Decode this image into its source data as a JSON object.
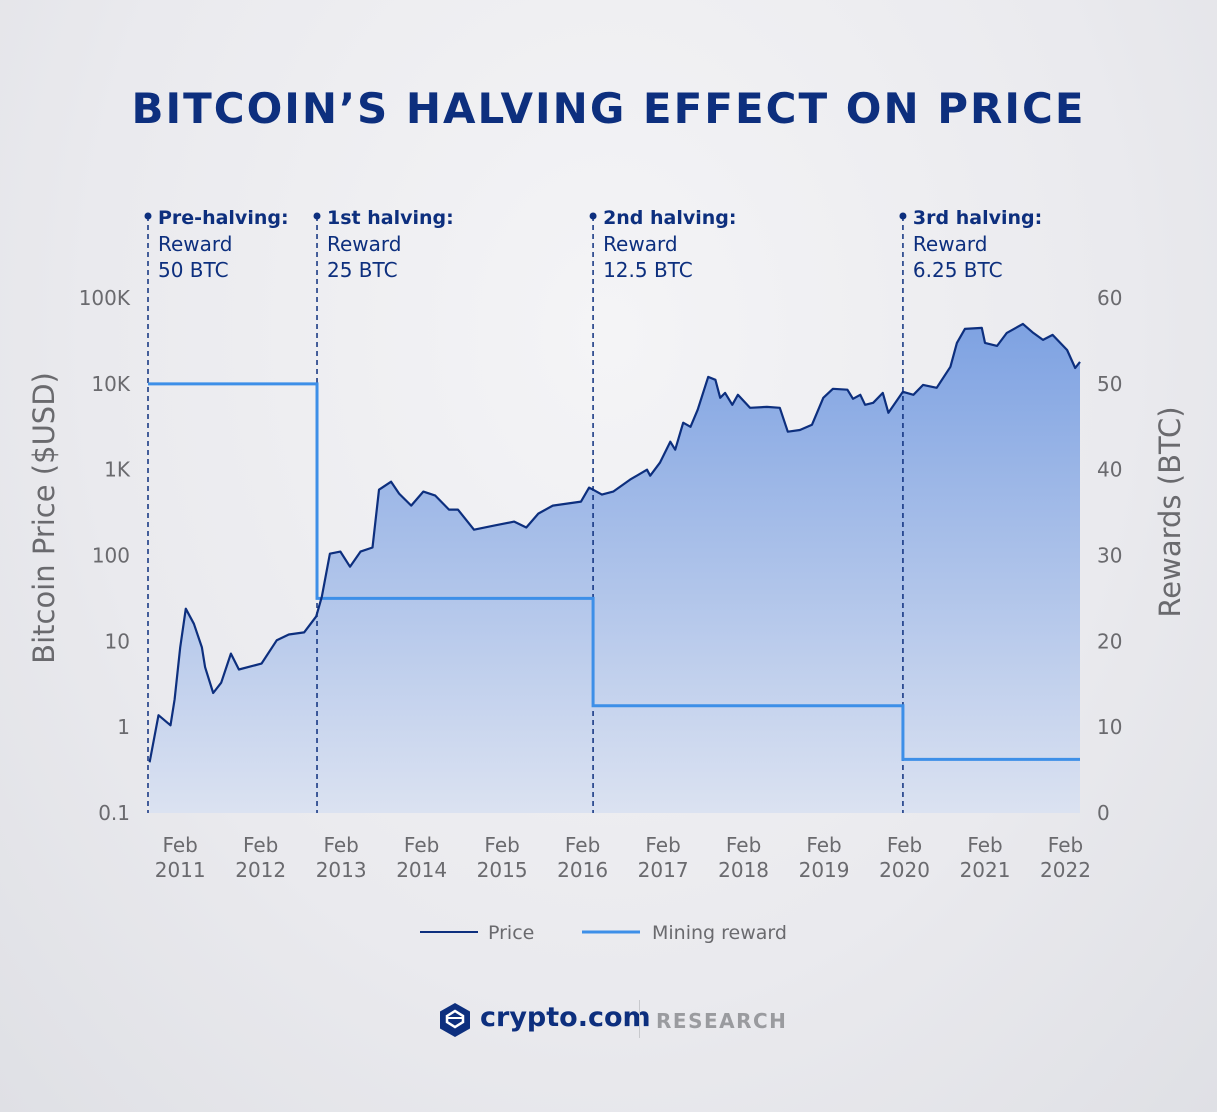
{
  "chart_data": {
    "type": "area",
    "title": "BITCOIN’S HALVING EFFECT ON PRICE",
    "ylabel": "Bitcoin Price ($USD)",
    "y2label": "Rewards (BTC)",
    "yscale": "log",
    "ylim": [
      0.1,
      100000
    ],
    "y2lim": [
      0,
      60
    ],
    "xlim": [
      2010.68,
      2022.26
    ],
    "grid": false,
    "legend_position": "bottom",
    "y_ticks": [
      {
        "v": 100000,
        "label": "100K"
      },
      {
        "v": 10000,
        "label": "10K"
      },
      {
        "v": 1000,
        "label": "1K"
      },
      {
        "v": 100,
        "label": "100"
      },
      {
        "v": 10,
        "label": "10"
      },
      {
        "v": 1,
        "label": "1"
      },
      {
        "v": 0.1,
        "label": "0.1"
      }
    ],
    "y2_ticks": [
      60,
      50,
      40,
      30,
      20,
      10,
      0
    ],
    "x_ticks": [
      {
        "v": 2011.08,
        "month": "Feb",
        "year": "2011"
      },
      {
        "v": 2012.08,
        "month": "Feb",
        "year": "2012"
      },
      {
        "v": 2013.08,
        "month": "Feb",
        "year": "2013"
      },
      {
        "v": 2014.08,
        "month": "Feb",
        "year": "2014"
      },
      {
        "v": 2015.08,
        "month": "Feb",
        "year": "2015"
      },
      {
        "v": 2016.08,
        "month": "Feb",
        "year": "2016"
      },
      {
        "v": 2017.08,
        "month": "Feb",
        "year": "2017"
      },
      {
        "v": 2018.08,
        "month": "Feb",
        "year": "2018"
      },
      {
        "v": 2019.08,
        "month": "Feb",
        "year": "2019"
      },
      {
        "v": 2020.08,
        "month": "Feb",
        "year": "2020"
      },
      {
        "v": 2021.08,
        "month": "Feb",
        "year": "2021"
      },
      {
        "v": 2022.08,
        "month": "Feb",
        "year": "2022"
      }
    ],
    "series": [
      {
        "name": "Price",
        "color": "#0d2f7e",
        "points": [
          [
            2010.7,
            0.39
          ],
          [
            2010.81,
            1.38
          ],
          [
            2010.96,
            1.05
          ],
          [
            2011.01,
            2.1
          ],
          [
            2011.08,
            8.5
          ],
          [
            2011.15,
            24
          ],
          [
            2011.25,
            16
          ],
          [
            2011.35,
            8.5
          ],
          [
            2011.39,
            5.0
          ],
          [
            2011.49,
            2.5
          ],
          [
            2011.59,
            3.3
          ],
          [
            2011.71,
            7.2
          ],
          [
            2011.81,
            4.7
          ],
          [
            2012.09,
            5.5
          ],
          [
            2012.28,
            10.3
          ],
          [
            2012.43,
            12
          ],
          [
            2012.62,
            12.7
          ],
          [
            2012.77,
            19.5
          ],
          [
            2012.84,
            33
          ],
          [
            2012.94,
            105
          ],
          [
            2013.07,
            111
          ],
          [
            2013.19,
            74
          ],
          [
            2013.32,
            111
          ],
          [
            2013.47,
            124
          ],
          [
            2013.55,
            585
          ],
          [
            2013.7,
            725
          ],
          [
            2013.8,
            526
          ],
          [
            2013.95,
            381
          ],
          [
            2014.1,
            555
          ],
          [
            2014.25,
            499
          ],
          [
            2014.42,
            343
          ],
          [
            2014.53,
            343
          ],
          [
            2014.73,
            200
          ],
          [
            2014.98,
            223
          ],
          [
            2015.23,
            248
          ],
          [
            2015.38,
            212
          ],
          [
            2015.53,
            308
          ],
          [
            2015.71,
            381
          ],
          [
            2016.06,
            425
          ],
          [
            2016.16,
            618
          ],
          [
            2016.21,
            585
          ],
          [
            2016.32,
            512
          ],
          [
            2016.46,
            555
          ],
          [
            2016.67,
            766
          ],
          [
            2016.88,
            1000
          ],
          [
            2016.92,
            851
          ],
          [
            2017.04,
            1205
          ],
          [
            2017.17,
            2118
          ],
          [
            2017.23,
            1710
          ],
          [
            2017.33,
            3525
          ],
          [
            2017.42,
            3162
          ],
          [
            2017.51,
            4990
          ],
          [
            2017.64,
            12050
          ],
          [
            2017.73,
            11140
          ],
          [
            2017.79,
            6870
          ],
          [
            2017.85,
            7850
          ],
          [
            2017.94,
            5700
          ],
          [
            2018.01,
            7450
          ],
          [
            2018.16,
            5260
          ],
          [
            2018.37,
            5380
          ],
          [
            2018.53,
            5260
          ],
          [
            2018.63,
            2770
          ],
          [
            2018.78,
            2900
          ],
          [
            2018.93,
            3340
          ],
          [
            2019.07,
            6870
          ],
          [
            2019.19,
            8750
          ],
          [
            2019.37,
            8550
          ],
          [
            2019.44,
            6700
          ],
          [
            2019.53,
            7450
          ],
          [
            2019.59,
            5700
          ],
          [
            2019.69,
            6010
          ],
          [
            2019.81,
            7850
          ],
          [
            2019.88,
            4600
          ],
          [
            2020.06,
            8070
          ],
          [
            2020.19,
            7450
          ],
          [
            2020.31,
            9730
          ],
          [
            2020.48,
            8980
          ],
          [
            2020.65,
            15800
          ],
          [
            2020.73,
            30000
          ],
          [
            2020.83,
            43600
          ],
          [
            2021.04,
            44800
          ],
          [
            2021.08,
            30000
          ],
          [
            2021.23,
            27700
          ],
          [
            2021.35,
            39200
          ],
          [
            2021.55,
            49900
          ],
          [
            2021.68,
            39200
          ],
          [
            2021.8,
            32500
          ],
          [
            2021.92,
            37200
          ],
          [
            2022.1,
            24800
          ],
          [
            2022.2,
            15300
          ],
          [
            2022.26,
            18000
          ]
        ]
      },
      {
        "name": "Mining reward",
        "color": "#3d8fe8",
        "steps": [
          {
            "from": 2010.68,
            "to": 2012.78,
            "value": 50
          },
          {
            "from": 2012.78,
            "to": 2016.21,
            "value": 25
          },
          {
            "from": 2016.21,
            "to": 2020.06,
            "value": 12.5
          },
          {
            "from": 2020.06,
            "to": 2022.26,
            "value": 6.25
          }
        ]
      }
    ],
    "annotations": [
      {
        "x": 2010.68,
        "heading": "Pre-halving:",
        "line1": "Reward",
        "line2": "50 BTC"
      },
      {
        "x": 2012.78,
        "heading": "1st halving:",
        "line1": "Reward",
        "line2": "25 BTC"
      },
      {
        "x": 2016.21,
        "heading": "2nd halving:",
        "line1": "Reward",
        "line2": "12.5 BTC"
      },
      {
        "x": 2020.06,
        "heading": "3rd halving:",
        "line1": "Reward",
        "line2": "6.25 BTC"
      }
    ],
    "fill_colors": {
      "top": "#7ea2e2",
      "bottom": "#dbe2f1"
    }
  },
  "legend": {
    "price": "Price",
    "reward": "Mining reward"
  },
  "footer": {
    "brand": "crypto.com",
    "division": "RESEARCH",
    "brand_color": "#0d2f7e"
  }
}
